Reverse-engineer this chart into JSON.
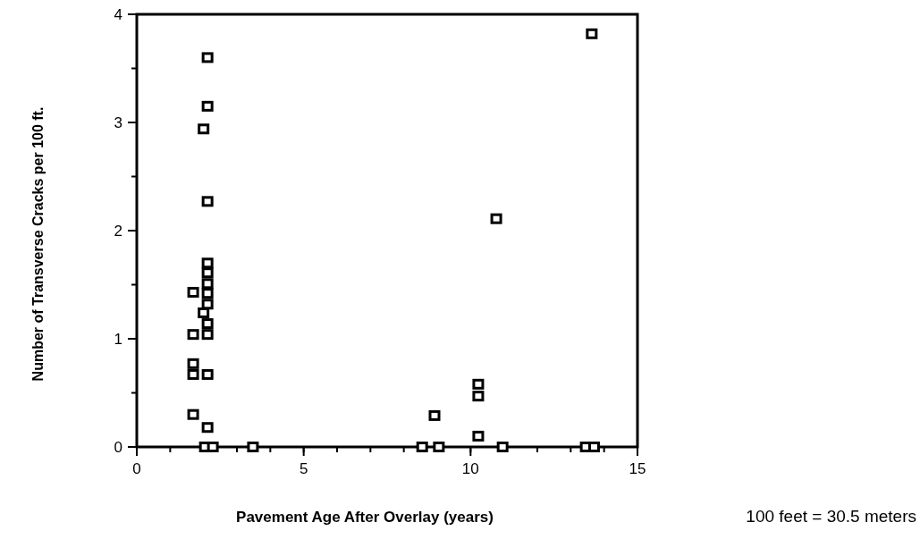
{
  "chart_data": {
    "type": "scatter",
    "xlabel": "Pavement Age After Overlay (years)",
    "ylabel": "Number of Transverse Cracks per 100 ft.",
    "annotations": [
      "100 feet = 30.5 meters"
    ],
    "xlim": [
      0,
      15
    ],
    "ylim": [
      0,
      4
    ],
    "xticks": [
      0,
      5,
      10,
      15
    ],
    "yticks": [
      0,
      1,
      2,
      3,
      4
    ],
    "marker": "square",
    "grid": false,
    "series": [
      {
        "color": "#000000",
        "x": [
          2.12,
          2.12,
          2.0,
          2.12,
          2.12,
          2.12,
          2.12,
          2.12,
          2.12,
          1.69,
          2.0,
          2.12,
          1.69,
          2.12,
          1.69,
          1.69,
          2.12,
          1.69,
          2.12,
          2.04,
          2.28,
          3.48,
          8.55,
          9.05,
          8.92,
          10.23,
          10.23,
          10.23,
          10.96,
          10.77,
          13.45,
          13.7,
          13.63
        ],
        "values": [
          3.6,
          3.15,
          2.94,
          2.27,
          1.7,
          1.61,
          1.51,
          1.42,
          1.32,
          1.43,
          1.24,
          1.14,
          1.04,
          1.04,
          0.77,
          0.67,
          0.67,
          0.3,
          0.18,
          0,
          0,
          0,
          0,
          0,
          0.29,
          0.58,
          0.47,
          0.1,
          0,
          2.11,
          0,
          0,
          3.82
        ]
      }
    ]
  }
}
